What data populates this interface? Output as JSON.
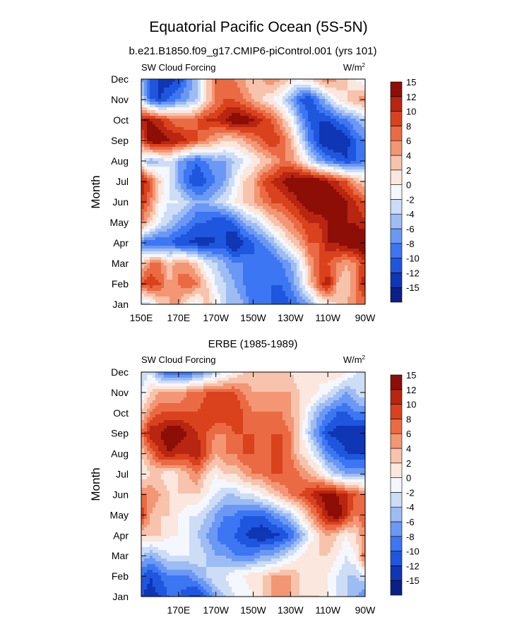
{
  "page_title": "Equatorial Pacific Ocean (5S-5N)",
  "colors": {
    "levels": [
      "#0b1f86",
      "#0f36b4",
      "#1f56de",
      "#3d76f2",
      "#6a98f4",
      "#9dbcf3",
      "#cdddf6",
      "#f4f7fd",
      "#fbe7dd",
      "#f7c3ac",
      "#f39674",
      "#ea6a43",
      "#d9421c",
      "#b82510",
      "#8c0e07"
    ]
  },
  "chart_data": [
    {
      "type": "heatmap",
      "subtype": "filled-contour",
      "title": "b.e21.B1850.f09_g17.CMIP6-piControl.001 (yrs 101)",
      "left_string": "SW Cloud Forcing",
      "right_string": "W/m",
      "right_string_sup": "2",
      "ylabel": "Month",
      "xlabel": "",
      "x_range_deg_east": [
        150,
        270
      ],
      "x_ticks": [
        150,
        170,
        190,
        210,
        230,
        250,
        270
      ],
      "x_tick_labels": [
        "150E",
        "170E",
        "170W",
        "150W",
        "130W",
        "110W",
        "90W"
      ],
      "y_tick_labels": [
        "Jan",
        "Feb",
        "Mar",
        "Apr",
        "May",
        "Jun",
        "Jul",
        "Aug",
        "Sep",
        "Oct",
        "Nov",
        "Dec"
      ],
      "colorbar_labels": [
        "-15",
        "-12",
        "-10",
        "-8",
        "-6",
        "-4",
        "-2",
        "0",
        "2",
        "4",
        "6",
        "8",
        "10",
        "12",
        "15"
      ],
      "grid_x_deg_east": [
        150,
        155,
        160,
        165,
        170,
        175,
        180,
        185,
        190,
        195,
        200,
        205,
        210,
        215,
        220,
        225,
        230,
        235,
        240,
        245,
        250,
        255,
        260,
        265,
        270
      ],
      "values": [
        [
          -4,
          -2,
          2,
          4,
          4,
          0,
          -2,
          4,
          0,
          -4,
          -4,
          -6,
          -10,
          -10,
          -10,
          -12,
          -10,
          -8,
          -6,
          -2,
          0,
          2,
          4,
          6,
          6
        ],
        [
          8,
          10,
          8,
          4,
          6,
          8,
          6,
          2,
          -2,
          -4,
          -6,
          -8,
          -10,
          -10,
          -10,
          -10,
          -8,
          -4,
          2,
          8,
          12,
          4,
          2,
          6,
          12
        ],
        [
          2,
          6,
          6,
          2,
          6,
          4,
          2,
          -2,
          -4,
          -6,
          -8,
          -8,
          -10,
          -10,
          -10,
          -8,
          -6,
          -2,
          4,
          8,
          8,
          6,
          4,
          6,
          10
        ],
        [
          -8,
          -10,
          -10,
          -10,
          -12,
          -12,
          -13,
          -13,
          -12,
          -12,
          -15,
          -12,
          -10,
          -8,
          -6,
          -2,
          2,
          4,
          8,
          8,
          12,
          12,
          14,
          14,
          15
        ],
        [
          6,
          2,
          -2,
          -4,
          -6,
          -8,
          -10,
          -10,
          -12,
          -12,
          -10,
          -6,
          -4,
          -2,
          2,
          4,
          6,
          8,
          10,
          10,
          12,
          12,
          12,
          12,
          10
        ],
        [
          10,
          6,
          0,
          -2,
          -2,
          -4,
          -6,
          -6,
          -4,
          -2,
          0,
          2,
          4,
          6,
          8,
          8,
          10,
          12,
          14,
          15,
          15,
          14,
          12,
          10,
          8
        ],
        [
          12,
          8,
          2,
          -2,
          -6,
          -10,
          -12,
          -10,
          -8,
          -6,
          -2,
          2,
          4,
          8,
          10,
          12,
          14,
          15,
          15,
          14,
          12,
          10,
          8,
          4,
          2
        ],
        [
          -2,
          -6,
          -4,
          -2,
          -6,
          -8,
          -10,
          -8,
          -6,
          -6,
          -4,
          -2,
          0,
          2,
          4,
          6,
          6,
          2,
          -2,
          -6,
          -8,
          -10,
          -12,
          -10,
          -8
        ],
        [
          6,
          14,
          14,
          12,
          12,
          10,
          8,
          6,
          4,
          2,
          2,
          4,
          6,
          8,
          10,
          8,
          4,
          -2,
          -8,
          -12,
          -15,
          -15,
          -13,
          -10,
          -8
        ],
        [
          12,
          12,
          10,
          8,
          6,
          6,
          8,
          10,
          10,
          12,
          14,
          14,
          12,
          10,
          8,
          4,
          0,
          -6,
          -10,
          -12,
          -12,
          -10,
          -8,
          -6,
          -4
        ],
        [
          -2,
          -10,
          -12,
          -10,
          -8,
          -6,
          -4,
          2,
          6,
          8,
          8,
          6,
          4,
          2,
          0,
          -2,
          -6,
          -10,
          -12,
          -8,
          -4,
          0,
          2,
          4,
          6
        ],
        [
          -6,
          -10,
          -13,
          -13,
          -12,
          -8,
          -4,
          2,
          6,
          8,
          6,
          4,
          2,
          4,
          6,
          4,
          2,
          0,
          2,
          4,
          6,
          4,
          2,
          0,
          -2
        ]
      ]
    },
    {
      "type": "heatmap",
      "subtype": "filled-contour",
      "title": "ERBE (1985-1989)",
      "left_string": "SW Cloud Forcing",
      "right_string": "W/m",
      "right_string_sup": "2",
      "ylabel": "Month",
      "xlabel": "",
      "x_range_deg_east": [
        150,
        270
      ],
      "x_ticks": [
        170,
        190,
        210,
        230,
        250,
        270
      ],
      "x_tick_labels": [
        "170E",
        "170W",
        "150W",
        "130W",
        "110W",
        "90W"
      ],
      "y_tick_labels": [
        "Jan",
        "Feb",
        "Mar",
        "Apr",
        "May",
        "Jun",
        "Jul",
        "Aug",
        "Sep",
        "Oct",
        "Nov",
        "Dec"
      ],
      "colorbar_labels": [
        "-15",
        "-12",
        "-10",
        "-8",
        "-6",
        "-4",
        "-2",
        "0",
        "2",
        "4",
        "6",
        "8",
        "10",
        "12",
        "15"
      ],
      "grid_x_deg_east": [
        150,
        155,
        160,
        165,
        170,
        175,
        180,
        185,
        190,
        195,
        200,
        205,
        210,
        215,
        220,
        225,
        230,
        235,
        240,
        245,
        250,
        255,
        260,
        265,
        270
      ],
      "values": [
        [
          -12,
          -13,
          -12,
          -10,
          -10,
          -12,
          -13,
          -10,
          -6,
          -4,
          -2,
          -2,
          0,
          2,
          4,
          4,
          4,
          2,
          2,
          2,
          0,
          -2,
          -4,
          -6,
          -8
        ],
        [
          -10,
          -12,
          -10,
          -8,
          -8,
          -8,
          -6,
          -4,
          -2,
          -2,
          0,
          0,
          2,
          2,
          4,
          4,
          4,
          2,
          0,
          0,
          0,
          -2,
          -4,
          -4,
          -2
        ],
        [
          -4,
          -6,
          -4,
          -2,
          -2,
          -2,
          -2,
          -4,
          -6,
          -6,
          -8,
          -8,
          -8,
          -6,
          -6,
          -4,
          -2,
          0,
          2,
          2,
          2,
          0,
          -2,
          0,
          8
        ],
        [
          2,
          2,
          2,
          0,
          0,
          -2,
          -4,
          -6,
          -8,
          -10,
          -10,
          -12,
          -13,
          -14,
          -13,
          -12,
          -10,
          -6,
          -2,
          2,
          4,
          2,
          0,
          2,
          6
        ],
        [
          10,
          4,
          2,
          2,
          0,
          -2,
          -2,
          -4,
          -6,
          -8,
          -8,
          -10,
          -10,
          -10,
          -8,
          -6,
          -4,
          0,
          4,
          8,
          12,
          14,
          10,
          6,
          8
        ],
        [
          6,
          6,
          4,
          2,
          2,
          2,
          2,
          0,
          -2,
          -4,
          -4,
          -2,
          -2,
          0,
          2,
          4,
          6,
          8,
          10,
          12,
          14,
          12,
          10,
          8,
          6
        ],
        [
          0,
          2,
          2,
          0,
          2,
          4,
          6,
          2,
          0,
          2,
          2,
          4,
          6,
          6,
          8,
          8,
          8,
          6,
          4,
          2,
          -2,
          -4,
          -6,
          -6,
          -6
        ],
        [
          2,
          6,
          10,
          12,
          10,
          10,
          12,
          8,
          4,
          6,
          6,
          8,
          8,
          6,
          8,
          8,
          6,
          2,
          0,
          -4,
          -8,
          -10,
          -12,
          -12,
          -12
        ],
        [
          6,
          12,
          12,
          14,
          14,
          12,
          10,
          8,
          6,
          6,
          8,
          8,
          8,
          8,
          8,
          8,
          6,
          2,
          -4,
          -8,
          -12,
          -13,
          -13,
          -14,
          -15
        ],
        [
          2,
          6,
          8,
          8,
          8,
          8,
          8,
          10,
          10,
          10,
          10,
          8,
          6,
          6,
          6,
          6,
          4,
          2,
          -2,
          -6,
          -8,
          -10,
          -10,
          -8,
          -8
        ],
        [
          -2,
          2,
          4,
          4,
          4,
          6,
          6,
          8,
          8,
          8,
          8,
          6,
          4,
          4,
          4,
          4,
          4,
          2,
          2,
          0,
          -2,
          -4,
          -6,
          -4,
          -2
        ],
        [
          -4,
          -2,
          -8,
          -10,
          -10,
          -10,
          -8,
          -6,
          -4,
          -2,
          0,
          2,
          2,
          2,
          2,
          2,
          2,
          0,
          0,
          0,
          2,
          2,
          0,
          -2,
          -2
        ]
      ]
    }
  ]
}
